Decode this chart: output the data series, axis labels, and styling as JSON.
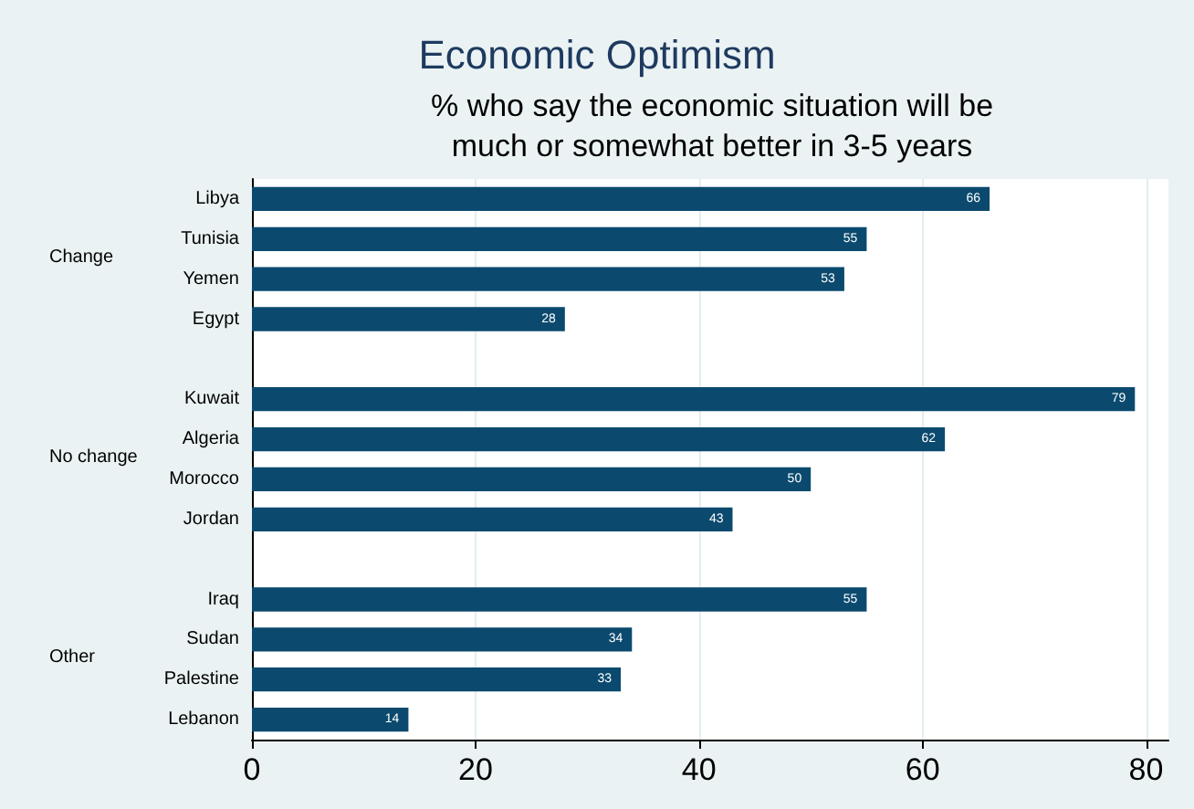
{
  "chart_data": {
    "type": "bar",
    "orientation": "horizontal",
    "title": "Economic Optimism",
    "subtitle": "% who say the economic situation will be\nmuch or somewhat better in 3-5 years",
    "categories": [
      "Libya",
      "Tunisia",
      "Yemen",
      "Egypt",
      null,
      "Kuwait",
      "Algeria",
      "Morocco",
      "Jordan",
      null,
      "Iraq",
      "Sudan",
      "Palestine",
      "Lebanon"
    ],
    "values": [
      66,
      55,
      53,
      28,
      null,
      79,
      62,
      50,
      43,
      null,
      55,
      34,
      33,
      14
    ],
    "color": "#0b4a6e",
    "annotations": [
      "Change",
      "No change",
      "Other"
    ],
    "xlim": [
      0,
      82
    ],
    "xticks": [
      0,
      20,
      40,
      60,
      80
    ],
    "grid": "x",
    "data_labels": true
  }
}
